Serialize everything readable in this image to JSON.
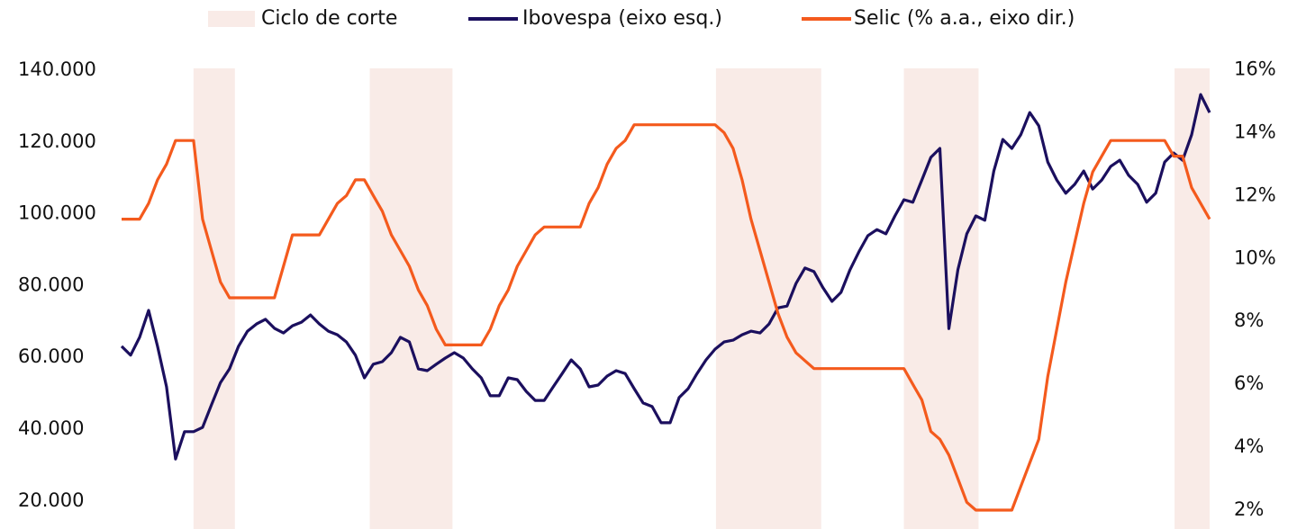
{
  "chart_data": {
    "type": "line",
    "legend": "top",
    "ylim": [
      12200,
      144500
    ],
    "yticks": [
      {
        "value": 140000,
        "label": "140.000"
      },
      {
        "value": 120000,
        "label": "120.000"
      },
      {
        "value": 100000,
        "label": "100.000"
      },
      {
        "value": 80000,
        "label": "80.000"
      },
      {
        "value": 60000,
        "label": "60.000"
      },
      {
        "value": 40000,
        "label": "40.000"
      },
      {
        "value": 20000,
        "label": "20.000"
      }
    ],
    "y2lim": [
      1.4,
      16.5
    ],
    "y2ticks": [
      {
        "value": 16,
        "label": "16%"
      },
      {
        "value": 14,
        "label": "14%"
      },
      {
        "value": 12,
        "label": "12%"
      },
      {
        "value": 10,
        "label": "10%"
      },
      {
        "value": 8,
        "label": "8%"
      },
      {
        "value": 6,
        "label": "6%"
      },
      {
        "value": 4,
        "label": "4%"
      },
      {
        "value": 2,
        "label": "2%"
      }
    ],
    "shaded_ranges": {
      "name": "Ciclo de corte",
      "color": "#f9ebe7",
      "ranges": [
        [
          8,
          12.6
        ],
        [
          27.6,
          36.8
        ],
        [
          66.1,
          77.8
        ],
        [
          87,
          95.3
        ],
        [
          117.1,
          121
        ]
      ]
    },
    "series": [
      {
        "name": "Ibovespa (eixo esq.)",
        "color": "#1b0f5e",
        "values": [
          63100,
          60600,
          65600,
          73100,
          63100,
          51800,
          31700,
          39300,
          39300,
          40500,
          46800,
          53000,
          56800,
          63100,
          67300,
          69300,
          70600,
          68100,
          66800,
          68800,
          69800,
          71800,
          69300,
          67300,
          66300,
          64300,
          60600,
          54300,
          58100,
          58800,
          61300,
          65600,
          64300,
          56800,
          56300,
          58100,
          59800,
          61300,
          59800,
          56800,
          54300,
          49300,
          49300,
          54300,
          53800,
          50500,
          48000,
          48000,
          51800,
          55500,
          59300,
          56800,
          51800,
          52300,
          54800,
          56300,
          55500,
          51300,
          47300,
          46300,
          41800,
          41800,
          48800,
          51300,
          55500,
          59300,
          62300,
          64300,
          64800,
          66300,
          67300,
          66800,
          69300,
          73800,
          74300,
          80600,
          84900,
          83900,
          79400,
          75600,
          78100,
          84400,
          89400,
          93900,
          95600,
          94400,
          99400,
          103900,
          103200,
          109400,
          115700,
          118200,
          68000,
          84400,
          94400,
          99400,
          98200,
          111900,
          120700,
          118200,
          122000,
          128200,
          124500,
          114400,
          109400,
          105700,
          108200,
          111900,
          106900,
          109400,
          113200,
          114900,
          110700,
          108200,
          103200,
          105700,
          114400,
          116900,
          114900,
          122000,
          133200,
          128200
        ]
      },
      {
        "name": "Selic (% a.a., eixo dir.)",
        "color": "#f45a1d",
        "axis": "y2",
        "values": [
          11.25,
          11.25,
          11.25,
          11.75,
          12.5,
          13.0,
          13.75,
          13.75,
          13.75,
          11.25,
          10.25,
          9.25,
          8.75,
          8.75,
          8.75,
          8.75,
          8.75,
          8.75,
          9.75,
          10.75,
          10.75,
          10.75,
          10.75,
          11.25,
          11.75,
          12.0,
          12.5,
          12.5,
          12.0,
          11.5,
          10.75,
          10.25,
          9.75,
          9.0,
          8.5,
          7.75,
          7.25,
          7.25,
          7.25,
          7.25,
          7.25,
          7.75,
          8.5,
          9.0,
          9.75,
          10.25,
          10.75,
          11.0,
          11.0,
          11.0,
          11.0,
          11.0,
          11.75,
          12.25,
          13.0,
          13.5,
          13.75,
          14.25,
          14.25,
          14.25,
          14.25,
          14.25,
          14.25,
          14.25,
          14.25,
          14.25,
          14.25,
          14.0,
          13.5,
          12.5,
          11.25,
          10.25,
          9.25,
          8.25,
          7.5,
          7.0,
          6.75,
          6.5,
          6.5,
          6.5,
          6.5,
          6.5,
          6.5,
          6.5,
          6.5,
          6.5,
          6.5,
          6.5,
          6.0,
          5.5,
          4.5,
          4.25,
          3.75,
          3.0,
          2.25,
          2.0,
          2.0,
          2.0,
          2.0,
          2.0,
          2.75,
          3.5,
          4.25,
          6.25,
          7.75,
          9.25,
          10.5,
          11.75,
          12.75,
          13.25,
          13.75,
          13.75,
          13.75,
          13.75,
          13.75,
          13.75,
          13.75,
          13.25,
          13.25,
          12.25,
          11.75,
          11.25
        ]
      }
    ]
  }
}
